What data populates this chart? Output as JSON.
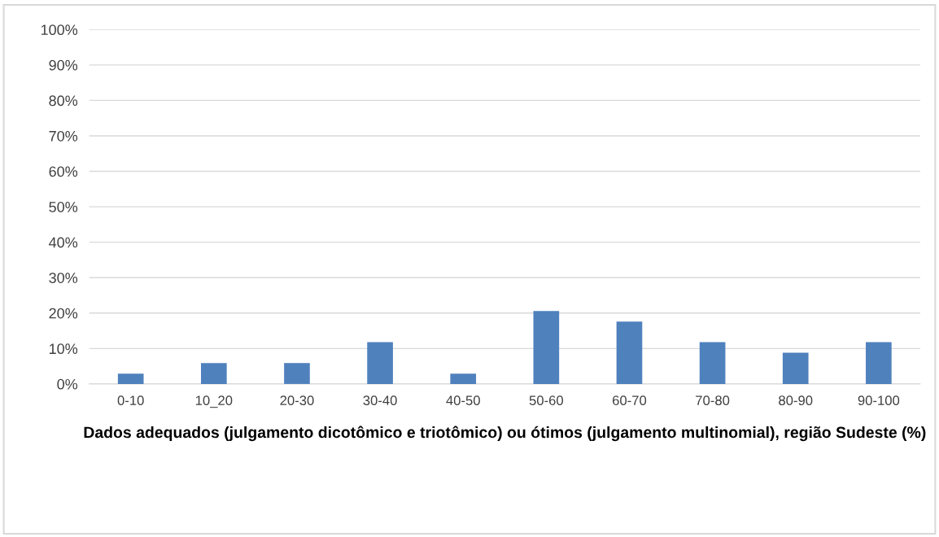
{
  "chart_data": {
    "type": "bar",
    "xlabel": "Dados adequados (julgamento dicotômico e triotômico) ou ótimos (julgamento multinomial), região Sudeste (%)",
    "categories": [
      "0-10",
      "10_20",
      "20-30",
      "30-40",
      "40-50",
      "50-60",
      "60-70",
      "70-80",
      "80-90",
      "90-100"
    ],
    "values": [
      2.9,
      5.9,
      5.9,
      11.8,
      2.9,
      20.6,
      17.6,
      11.8,
      8.8,
      11.8
    ],
    "color": "#4f81bd",
    "ylim": [
      0,
      100
    ],
    "yticks": [
      {
        "value": 0,
        "label": "0%"
      },
      {
        "value": 10,
        "label": "10%"
      },
      {
        "value": 20,
        "label": "20%"
      },
      {
        "value": 30,
        "label": "30%"
      },
      {
        "value": 40,
        "label": "40%"
      },
      {
        "value": 50,
        "label": "50%"
      },
      {
        "value": 60,
        "label": "60%"
      },
      {
        "value": 70,
        "label": "70%"
      },
      {
        "value": 80,
        "label": "80%"
      },
      {
        "value": 90,
        "label": "90%"
      },
      {
        "value": 100,
        "label": "100%"
      }
    ],
    "grid": "y",
    "legend": false
  }
}
